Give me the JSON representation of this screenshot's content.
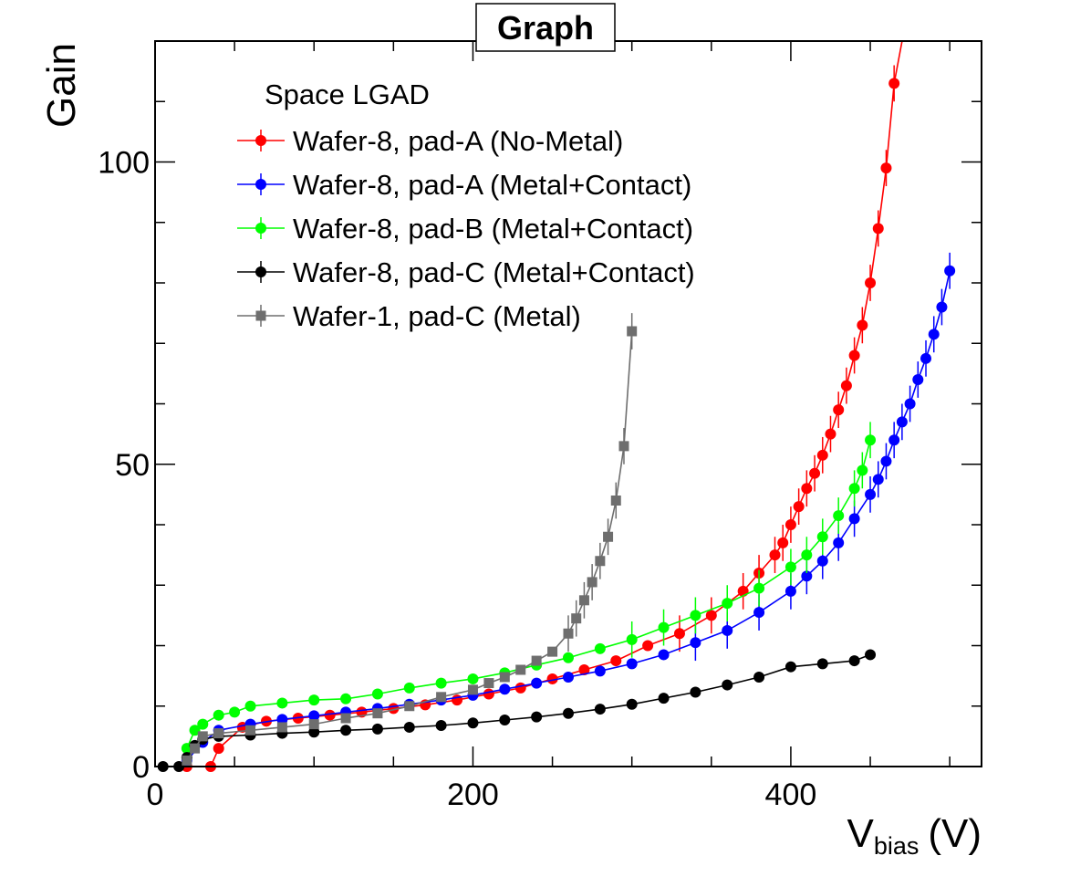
{
  "chart_data": {
    "type": "scatter",
    "title": "Graph",
    "xlabel": "V",
    "xlabel_sub": "bias",
    "xlabel_unit": "(V)",
    "ylabel": "Gain",
    "xlim": [
      0,
      520
    ],
    "ylim": [
      0,
      120
    ],
    "x_ticks": [
      0,
      200,
      400
    ],
    "y_ticks": [
      0,
      50,
      100
    ],
    "legend_title": "Space LGAD",
    "legend_position": "top-left",
    "series": [
      {
        "name": "Wafer-8, pad-A (No-Metal)",
        "color": "#ff0000",
        "marker": "circle",
        "x": [
          20,
          35,
          40,
          55,
          70,
          90,
          110,
          130,
          150,
          170,
          190,
          210,
          230,
          250,
          270,
          290,
          310,
          330,
          350,
          370,
          380,
          390,
          395,
          400,
          405,
          410,
          415,
          420,
          425,
          430,
          435,
          440,
          445,
          450,
          455,
          460,
          465,
          470
        ],
        "y": [
          0,
          0,
          3,
          6.5,
          7.5,
          8,
          8.5,
          9,
          9.6,
          10.2,
          11,
          12,
          13,
          14.5,
          16,
          17.5,
          20,
          22,
          25,
          29,
          32,
          35,
          37,
          40,
          43,
          46,
          48.5,
          51.5,
          55,
          59,
          63,
          68,
          73,
          80,
          89,
          99,
          113,
          125
        ]
      },
      {
        "name": "Wafer-8, pad-A (Metal+Contact)",
        "color": "#0000ff",
        "marker": "circle",
        "x": [
          20,
          30,
          40,
          60,
          80,
          100,
          120,
          140,
          160,
          180,
          200,
          220,
          240,
          260,
          280,
          300,
          320,
          340,
          360,
          380,
          400,
          410,
          420,
          430,
          440,
          450,
          455,
          460,
          465,
          470,
          475,
          480,
          485,
          490,
          495,
          500
        ],
        "y": [
          1,
          4,
          6,
          7,
          7.8,
          8.4,
          9,
          9.6,
          10.3,
          11,
          11.8,
          12.8,
          13.8,
          14.8,
          15.8,
          17,
          18.5,
          20.5,
          22.5,
          25.5,
          29,
          31.5,
          34,
          37,
          41,
          45,
          47.5,
          50.5,
          54,
          57,
          60,
          64,
          67.5,
          71.5,
          76,
          82
        ]
      },
      {
        "name": "Wafer-8, pad-B (Metal+Contact)",
        "color": "#00ff00",
        "marker": "circle",
        "x": [
          20,
          25,
          30,
          40,
          50,
          60,
          80,
          100,
          120,
          140,
          160,
          180,
          200,
          220,
          240,
          260,
          280,
          300,
          320,
          340,
          360,
          380,
          400,
          410,
          420,
          430,
          440,
          445,
          450
        ],
        "y": [
          3,
          6,
          7,
          8.5,
          9,
          10,
          10.5,
          11,
          11.2,
          12,
          13,
          13.8,
          14.5,
          15.5,
          16.8,
          18,
          19.5,
          21,
          23,
          25,
          27,
          29.5,
          33,
          35,
          38,
          41.5,
          46,
          49,
          54
        ]
      },
      {
        "name": "Wafer-8, pad-C (Metal+Contact)",
        "color": "#000000",
        "marker": "circle",
        "x": [
          5,
          15,
          20,
          25,
          30,
          40,
          60,
          80,
          100,
          120,
          140,
          160,
          180,
          200,
          220,
          240,
          260,
          280,
          300,
          320,
          340,
          360,
          380,
          400,
          420,
          440,
          450
        ],
        "y": [
          0,
          0,
          1.5,
          3.5,
          4.5,
          5,
          5.2,
          5.5,
          5.7,
          6,
          6.2,
          6.5,
          6.8,
          7.2,
          7.7,
          8.2,
          8.8,
          9.5,
          10.3,
          11.3,
          12.3,
          13.5,
          14.8,
          16.5,
          17,
          17.5,
          18.5
        ]
      },
      {
        "name": "Wafer-1, pad-C (Metal)",
        "color": "#6e6e6e",
        "marker": "square",
        "x": [
          20,
          25,
          30,
          40,
          60,
          80,
          100,
          120,
          140,
          160,
          180,
          200,
          210,
          220,
          230,
          240,
          250,
          260,
          265,
          270,
          275,
          280,
          285,
          290,
          295,
          300
        ],
        "y": [
          1,
          3,
          5,
          5.5,
          6,
          6.5,
          7,
          8,
          8.8,
          10,
          11.5,
          12.7,
          13.8,
          14.8,
          16,
          17.5,
          19,
          22,
          24.5,
          27.5,
          30.5,
          34,
          38,
          44,
          53,
          72
        ]
      }
    ]
  }
}
